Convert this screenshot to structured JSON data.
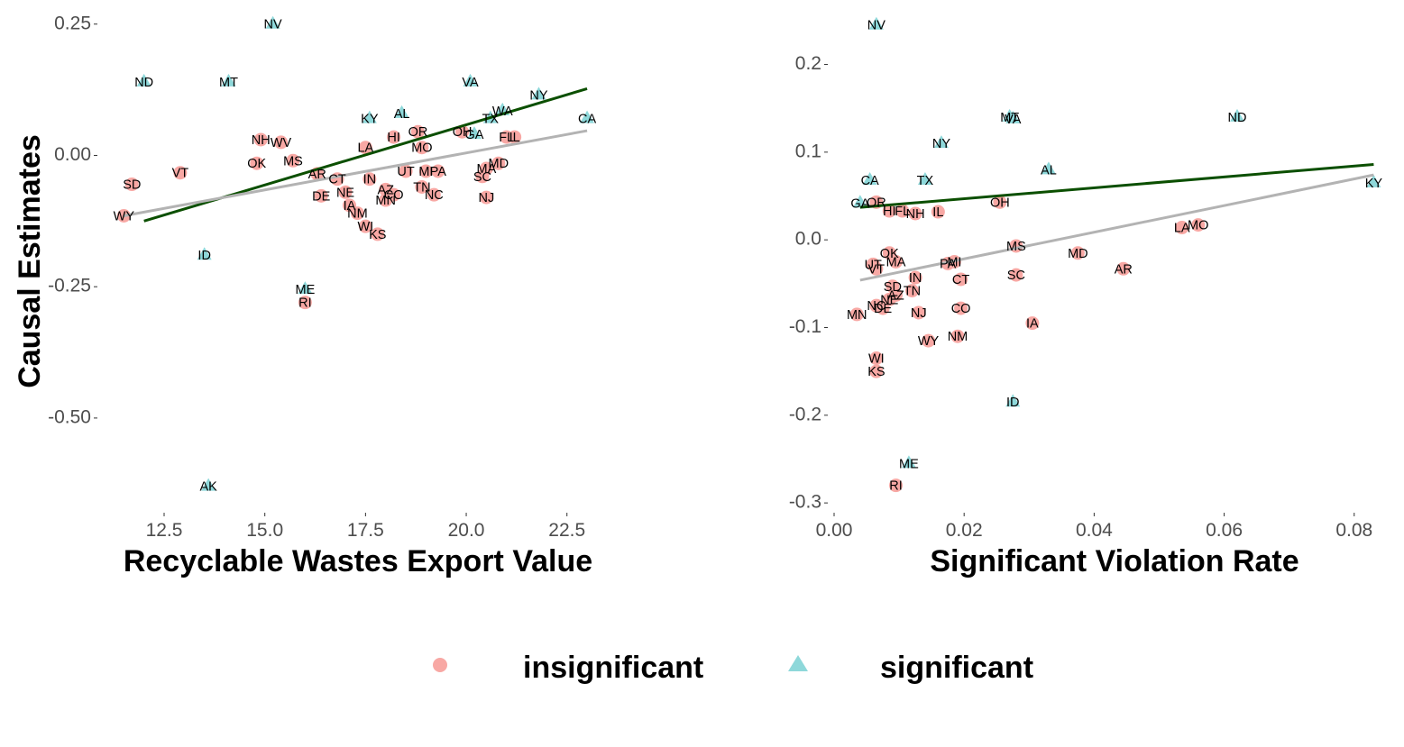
{
  "colors": {
    "insignificant": "#F8A8A4",
    "significant": "#8ED8DA",
    "fit_significant": "#0B4F00",
    "fit_all": "#B3B3B3",
    "tick_text": "#4d4d4d"
  },
  "shared_ylabel": "Causal Estimates",
  "legend": {
    "items": [
      {
        "key": "insignificant",
        "label": "insignificant",
        "shape": "circle"
      },
      {
        "key": "significant",
        "label": "significant",
        "shape": "triangle"
      }
    ]
  },
  "chart_data": [
    {
      "type": "scatter",
      "xlabel": "Recyclable Wastes Export Value",
      "ylabel": "Causal Estimates",
      "xlim": [
        11.0,
        23.2
      ],
      "ylim": [
        -0.67,
        0.265
      ],
      "xticks": [
        12.5,
        15.0,
        17.5,
        20.0,
        22.5
      ],
      "xtick_labels": [
        "12.5",
        "15.0",
        "17.5",
        "20.0",
        "22.5"
      ],
      "yticks": [
        0.25,
        0.0,
        -0.25,
        -0.5
      ],
      "ytick_labels": [
        "0.25",
        "0.00",
        "-0.25",
        "-0.50"
      ],
      "grid": false,
      "fit_lines": [
        {
          "group": "significant",
          "x": [
            12.0,
            23.0
          ],
          "y": [
            -0.125,
            0.127
          ]
        },
        {
          "group": "all",
          "x": [
            11.5,
            23.0
          ],
          "y": [
            -0.115,
            0.047
          ]
        }
      ],
      "points": [
        {
          "s": "NV",
          "x": 15.2,
          "y": 0.25,
          "g": "significant"
        },
        {
          "s": "ND",
          "x": 12.0,
          "y": 0.14,
          "g": "significant"
        },
        {
          "s": "MT",
          "x": 14.1,
          "y": 0.14,
          "g": "significant"
        },
        {
          "s": "VA",
          "x": 20.1,
          "y": 0.14,
          "g": "significant"
        },
        {
          "s": "NY",
          "x": 21.8,
          "y": 0.115,
          "g": "significant"
        },
        {
          "s": "WA",
          "x": 20.9,
          "y": 0.085,
          "g": "significant"
        },
        {
          "s": "AL",
          "x": 18.4,
          "y": 0.08,
          "g": "significant"
        },
        {
          "s": "KY",
          "x": 17.6,
          "y": 0.07,
          "g": "significant"
        },
        {
          "s": "TX",
          "x": 20.6,
          "y": 0.07,
          "g": "significant"
        },
        {
          "s": "CA",
          "x": 23.0,
          "y": 0.07,
          "g": "significant"
        },
        {
          "s": "GA",
          "x": 20.2,
          "y": 0.04,
          "g": "significant"
        },
        {
          "s": "ID",
          "x": 13.5,
          "y": -0.19,
          "g": "significant"
        },
        {
          "s": "ME",
          "x": 16.0,
          "y": -0.255,
          "g": "significant"
        },
        {
          "s": "AK",
          "x": 13.6,
          "y": -0.63,
          "g": "significant"
        },
        {
          "s": "OR",
          "x": 18.8,
          "y": 0.045,
          "g": "insignificant"
        },
        {
          "s": "OH",
          "x": 19.9,
          "y": 0.045,
          "g": "insignificant"
        },
        {
          "s": "HI",
          "x": 18.2,
          "y": 0.035,
          "g": "insignificant"
        },
        {
          "s": "FL",
          "x": 21.0,
          "y": 0.035,
          "g": "insignificant"
        },
        {
          "s": "IL",
          "x": 21.2,
          "y": 0.035,
          "g": "insignificant"
        },
        {
          "s": "NH",
          "x": 14.9,
          "y": 0.03,
          "g": "insignificant"
        },
        {
          "s": "WV",
          "x": 15.4,
          "y": 0.025,
          "g": "insignificant"
        },
        {
          "s": "LA",
          "x": 17.5,
          "y": 0.015,
          "g": "insignificant"
        },
        {
          "s": "MO",
          "x": 18.9,
          "y": 0.015,
          "g": "insignificant"
        },
        {
          "s": "MS",
          "x": 15.7,
          "y": -0.01,
          "g": "insignificant"
        },
        {
          "s": "OK",
          "x": 14.8,
          "y": -0.015,
          "g": "insignificant"
        },
        {
          "s": "MD",
          "x": 20.8,
          "y": -0.015,
          "g": "insignificant"
        },
        {
          "s": "MA",
          "x": 20.5,
          "y": -0.025,
          "g": "insignificant"
        },
        {
          "s": "UT",
          "x": 18.5,
          "y": -0.03,
          "g": "insignificant"
        },
        {
          "s": "MI",
          "x": 19.0,
          "y": -0.03,
          "g": "insignificant"
        },
        {
          "s": "PA",
          "x": 19.3,
          "y": -0.03,
          "g": "insignificant"
        },
        {
          "s": "VT",
          "x": 12.9,
          "y": -0.033,
          "g": "insignificant"
        },
        {
          "s": "AR",
          "x": 16.3,
          "y": -0.035,
          "g": "insignificant"
        },
        {
          "s": "SC",
          "x": 20.4,
          "y": -0.04,
          "g": "insignificant"
        },
        {
          "s": "CT",
          "x": 16.8,
          "y": -0.045,
          "g": "insignificant"
        },
        {
          "s": "IN",
          "x": 17.6,
          "y": -0.045,
          "g": "insignificant"
        },
        {
          "s": "SD",
          "x": 11.7,
          "y": -0.055,
          "g": "insignificant"
        },
        {
          "s": "TN",
          "x": 18.9,
          "y": -0.06,
          "g": "insignificant"
        },
        {
          "s": "AZ",
          "x": 18.0,
          "y": -0.065,
          "g": "insignificant"
        },
        {
          "s": "NE",
          "x": 17.0,
          "y": -0.07,
          "g": "insignificant"
        },
        {
          "s": "NC",
          "x": 19.2,
          "y": -0.075,
          "g": "insignificant"
        },
        {
          "s": "CO",
          "x": 18.2,
          "y": -0.075,
          "g": "insignificant"
        },
        {
          "s": "DE",
          "x": 16.4,
          "y": -0.077,
          "g": "insignificant"
        },
        {
          "s": "NJ",
          "x": 20.5,
          "y": -0.08,
          "g": "insignificant"
        },
        {
          "s": "MN",
          "x": 18.0,
          "y": -0.085,
          "g": "insignificant"
        },
        {
          "s": "IA",
          "x": 17.1,
          "y": -0.095,
          "g": "insignificant"
        },
        {
          "s": "NM",
          "x": 17.3,
          "y": -0.11,
          "g": "insignificant"
        },
        {
          "s": "WY",
          "x": 11.5,
          "y": -0.115,
          "g": "insignificant"
        },
        {
          "s": "WI",
          "x": 17.5,
          "y": -0.135,
          "g": "insignificant"
        },
        {
          "s": "KS",
          "x": 17.8,
          "y": -0.15,
          "g": "insignificant"
        },
        {
          "s": "RI",
          "x": 16.0,
          "y": -0.28,
          "g": "insignificant"
        }
      ]
    },
    {
      "type": "scatter",
      "xlabel": "Significant Violation Rate",
      "ylabel": "",
      "xlim": [
        0.0,
        0.0835
      ],
      "ylim": [
        -0.305,
        0.255
      ],
      "xticks": [
        0.0,
        0.02,
        0.04,
        0.06,
        0.08
      ],
      "xtick_labels": [
        "0.00",
        "0.02",
        "0.04",
        "0.06",
        "0.08"
      ],
      "yticks": [
        0.2,
        0.1,
        0.0,
        -0.1,
        -0.2,
        -0.3
      ],
      "ytick_labels": [
        "0.2",
        "0.1",
        "0.0",
        "-0.1",
        "-0.2",
        "-0.3"
      ],
      "grid": false,
      "fit_lines": [
        {
          "group": "significant",
          "x": [
            0.004,
            0.083
          ],
          "y": [
            0.037,
            0.086
          ]
        },
        {
          "group": "all",
          "x": [
            0.004,
            0.083
          ],
          "y": [
            -0.046,
            0.074
          ]
        }
      ],
      "points": [
        {
          "s": "NV",
          "x": 0.0065,
          "y": 0.245,
          "g": "significant"
        },
        {
          "s": "MT",
          "x": 0.027,
          "y": 0.14,
          "g": "significant"
        },
        {
          "s": "VA",
          "x": 0.0275,
          "y": 0.138,
          "g": "significant"
        },
        {
          "s": "ND",
          "x": 0.062,
          "y": 0.14,
          "g": "significant"
        },
        {
          "s": "NY",
          "x": 0.0165,
          "y": 0.11,
          "g": "significant"
        },
        {
          "s": "AL",
          "x": 0.033,
          "y": 0.08,
          "g": "significant"
        },
        {
          "s": "CA",
          "x": 0.0055,
          "y": 0.068,
          "g": "significant"
        },
        {
          "s": "TX",
          "x": 0.014,
          "y": 0.068,
          "g": "significant"
        },
        {
          "s": "KY",
          "x": 0.083,
          "y": 0.065,
          "g": "significant"
        },
        {
          "s": "GA",
          "x": 0.004,
          "y": 0.042,
          "g": "significant"
        },
        {
          "s": "ID",
          "x": 0.0275,
          "y": -0.185,
          "g": "significant"
        },
        {
          "s": "ME",
          "x": 0.0115,
          "y": -0.255,
          "g": "significant"
        },
        {
          "s": "OR",
          "x": 0.0065,
          "y": 0.043,
          "g": "insignificant"
        },
        {
          "s": "OH",
          "x": 0.0255,
          "y": 0.043,
          "g": "insignificant"
        },
        {
          "s": "HI",
          "x": 0.0085,
          "y": 0.033,
          "g": "insignificant"
        },
        {
          "s": "FL",
          "x": 0.0105,
          "y": 0.033,
          "g": "insignificant"
        },
        {
          "s": "IL",
          "x": 0.016,
          "y": 0.032,
          "g": "insignificant"
        },
        {
          "s": "NH",
          "x": 0.0125,
          "y": 0.03,
          "g": "insignificant"
        },
        {
          "s": "LA",
          "x": 0.0535,
          "y": 0.014,
          "g": "insignificant"
        },
        {
          "s": "MO",
          "x": 0.056,
          "y": 0.017,
          "g": "insignificant"
        },
        {
          "s": "MS",
          "x": 0.028,
          "y": -0.007,
          "g": "insignificant"
        },
        {
          "s": "MD",
          "x": 0.0375,
          "y": -0.015,
          "g": "insignificant"
        },
        {
          "s": "OK",
          "x": 0.0085,
          "y": -0.015,
          "g": "insignificant"
        },
        {
          "s": "UT",
          "x": 0.006,
          "y": -0.028,
          "g": "insignificant"
        },
        {
          "s": "MA",
          "x": 0.0095,
          "y": -0.025,
          "g": "insignificant"
        },
        {
          "s": "VT",
          "x": 0.0065,
          "y": -0.033,
          "g": "insignificant"
        },
        {
          "s": "PA",
          "x": 0.0175,
          "y": -0.027,
          "g": "insignificant"
        },
        {
          "s": "MI",
          "x": 0.0185,
          "y": -0.025,
          "g": "insignificant"
        },
        {
          "s": "AR",
          "x": 0.0445,
          "y": -0.033,
          "g": "insignificant"
        },
        {
          "s": "SC",
          "x": 0.028,
          "y": -0.04,
          "g": "insignificant"
        },
        {
          "s": "IN",
          "x": 0.0125,
          "y": -0.043,
          "g": "insignificant"
        },
        {
          "s": "CT",
          "x": 0.0195,
          "y": -0.045,
          "g": "insignificant"
        },
        {
          "s": "SD",
          "x": 0.009,
          "y": -0.053,
          "g": "insignificant"
        },
        {
          "s": "TN",
          "x": 0.012,
          "y": -0.058,
          "g": "insignificant"
        },
        {
          "s": "AZ",
          "x": 0.0095,
          "y": -0.063,
          "g": "insignificant"
        },
        {
          "s": "NE",
          "x": 0.0085,
          "y": -0.068,
          "g": "insignificant"
        },
        {
          "s": "NC",
          "x": 0.0065,
          "y": -0.075,
          "g": "insignificant"
        },
        {
          "s": "DE",
          "x": 0.0075,
          "y": -0.078,
          "g": "insignificant"
        },
        {
          "s": "CO",
          "x": 0.0195,
          "y": -0.078,
          "g": "insignificant"
        },
        {
          "s": "NJ",
          "x": 0.013,
          "y": -0.083,
          "g": "insignificant"
        },
        {
          "s": "MN",
          "x": 0.0035,
          "y": -0.085,
          "g": "insignificant"
        },
        {
          "s": "IA",
          "x": 0.0305,
          "y": -0.095,
          "g": "insignificant"
        },
        {
          "s": "NM",
          "x": 0.019,
          "y": -0.11,
          "g": "insignificant"
        },
        {
          "s": "WY",
          "x": 0.0145,
          "y": -0.115,
          "g": "insignificant"
        },
        {
          "s": "WI",
          "x": 0.0065,
          "y": -0.135,
          "g": "insignificant"
        },
        {
          "s": "KS",
          "x": 0.0065,
          "y": -0.15,
          "g": "insignificant"
        },
        {
          "s": "RI",
          "x": 0.0095,
          "y": -0.28,
          "g": "insignificant"
        }
      ]
    }
  ]
}
